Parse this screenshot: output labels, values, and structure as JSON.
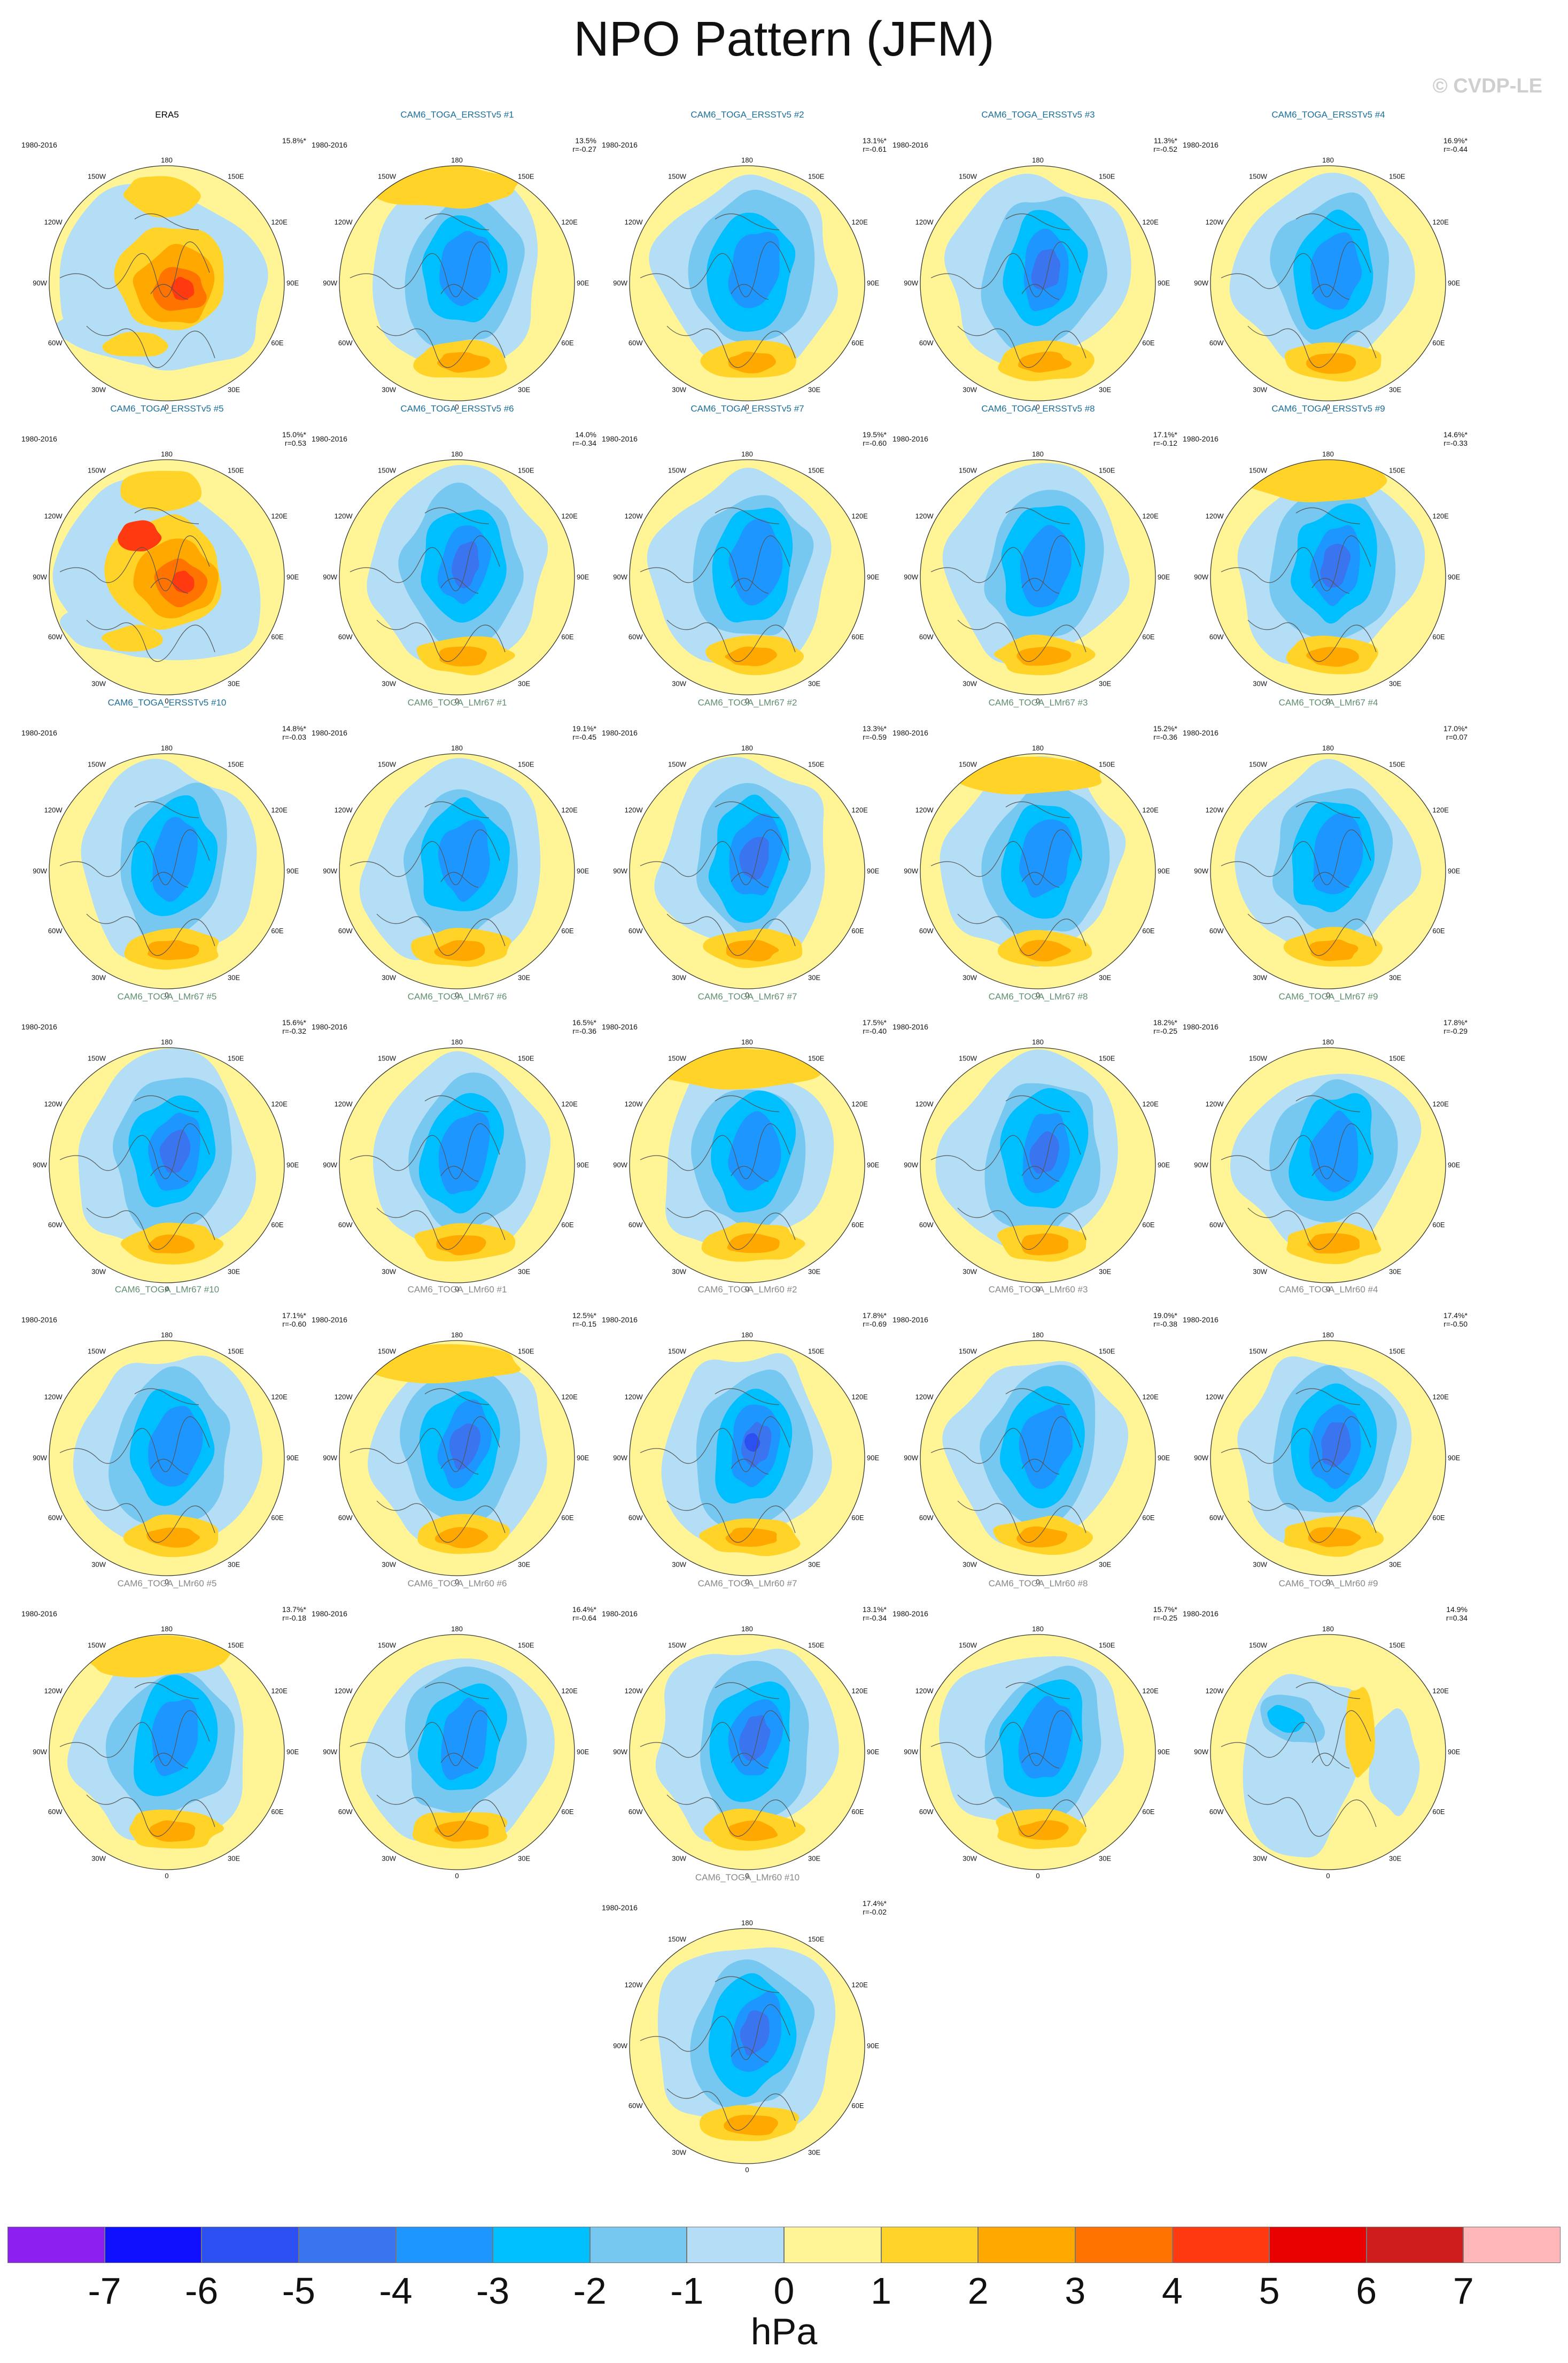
{
  "title": "NPO Pattern (JFM)",
  "copyright": "© CVDP-LE",
  "period": "1980-2016",
  "map_labels": {
    "top": "180",
    "bottom": "0",
    "left_upper": "120W",
    "left_mid": "90W",
    "left_lower": "60W",
    "right_upper": "120E",
    "right_mid": "90E",
    "right_lower": "60E",
    "top_left": "150W",
    "top_right": "150E",
    "bottom_left": "30W",
    "bottom_right": "30E"
  },
  "colors": {
    "title_era5": "#000000",
    "title_ersst": "#1b6f9a",
    "title_lmr67": "#5f8f6f",
    "title_lmr60": "#888888",
    "coast": "#555555"
  },
  "panels": [
    {
      "title": "ERA5",
      "pct": "15.8%*",
      "r": "",
      "group": "era5"
    },
    {
      "title": "CAM6_TOGA_ERSSTv5 #1",
      "pct": "13.5%",
      "r": "r=-0.27",
      "group": "ersst"
    },
    {
      "title": "CAM6_TOGA_ERSSTv5 #2",
      "pct": "13.1%*",
      "r": "r=-0.61",
      "group": "ersst"
    },
    {
      "title": "CAM6_TOGA_ERSSTv5 #3",
      "pct": "11.3%*",
      "r": "r=-0.52",
      "group": "ersst"
    },
    {
      "title": "CAM6_TOGA_ERSSTv5 #4",
      "pct": "16.9%*",
      "r": "r=-0.44",
      "group": "ersst"
    },
    {
      "title": "CAM6_TOGA_ERSSTv5 #5",
      "pct": "15.0%*",
      "r": "r=0.53",
      "group": "ersst"
    },
    {
      "title": "CAM6_TOGA_ERSSTv5 #6",
      "pct": "14.0%",
      "r": "r=-0.34",
      "group": "ersst"
    },
    {
      "title": "CAM6_TOGA_ERSSTv5 #7",
      "pct": "19.5%*",
      "r": "r=-0.60",
      "group": "ersst"
    },
    {
      "title": "CAM6_TOGA_ERSSTv5 #8",
      "pct": "17.1%*",
      "r": "r=-0.12",
      "group": "ersst"
    },
    {
      "title": "CAM6_TOGA_ERSSTv5 #9",
      "pct": "14.6%*",
      "r": "r=-0.33",
      "group": "ersst"
    },
    {
      "title": "CAM6_TOGA_ERSSTv5 #10",
      "pct": "14.8%*",
      "r": "r=-0.03",
      "group": "ersst"
    },
    {
      "title": "CAM6_TOGA_LMr67 #1",
      "pct": "19.1%*",
      "r": "r=-0.45",
      "group": "lmr67"
    },
    {
      "title": "CAM6_TOGA_LMr67 #2",
      "pct": "13.3%*",
      "r": "r=-0.59",
      "group": "lmr67"
    },
    {
      "title": "CAM6_TOGA_LMr67 #3",
      "pct": "15.2%*",
      "r": "r=-0.36",
      "group": "lmr67"
    },
    {
      "title": "CAM6_TOGA_LMr67 #4",
      "pct": "17.0%*",
      "r": "r=0.07",
      "group": "lmr67"
    },
    {
      "title": "CAM6_TOGA_LMr67 #5",
      "pct": "15.6%*",
      "r": "r=-0.32",
      "group": "lmr67"
    },
    {
      "title": "CAM6_TOGA_LMr67 #6",
      "pct": "16.5%*",
      "r": "r=-0.36",
      "group": "lmr67"
    },
    {
      "title": "CAM6_TOGA_LMr67 #7",
      "pct": "17.5%*",
      "r": "r=-0.40",
      "group": "lmr67"
    },
    {
      "title": "CAM6_TOGA_LMr67 #8",
      "pct": "18.2%*",
      "r": "r=-0.25",
      "group": "lmr67"
    },
    {
      "title": "CAM6_TOGA_LMr67 #9",
      "pct": "17.8%*",
      "r": "r=-0.29",
      "group": "lmr67"
    },
    {
      "title": "CAM6_TOGA_LMr67 #10",
      "pct": "17.1%*",
      "r": "r=-0.60",
      "group": "lmr67"
    },
    {
      "title": "CAM6_TOGA_LMr60 #1",
      "pct": "12.5%*",
      "r": "r=-0.15",
      "group": "lmr60"
    },
    {
      "title": "CAM6_TOGA_LMr60 #2",
      "pct": "17.8%*",
      "r": "r=-0.69",
      "group": "lmr60"
    },
    {
      "title": "CAM6_TOGA_LMr60 #3",
      "pct": "19.0%*",
      "r": "r=-0.38",
      "group": "lmr60"
    },
    {
      "title": "CAM6_TOGA_LMr60 #4",
      "pct": "17.4%*",
      "r": "r=-0.50",
      "group": "lmr60"
    },
    {
      "title": "CAM6_TOGA_LMr60 #5",
      "pct": "13.7%*",
      "r": "r=-0.18",
      "group": "lmr60"
    },
    {
      "title": "CAM6_TOGA_LMr60 #6",
      "pct": "16.4%*",
      "r": "r=-0.64",
      "group": "lmr60"
    },
    {
      "title": "CAM6_TOGA_LMr60 #7",
      "pct": "13.1%*",
      "r": "r=-0.34",
      "group": "lmr60"
    },
    {
      "title": "CAM6_TOGA_LMr60 #8",
      "pct": "15.7%*",
      "r": "r=-0.25",
      "group": "lmr60"
    },
    {
      "title": "CAM6_TOGA_LMr60 #9",
      "pct": "14.9%",
      "r": "r=0.34",
      "group": "lmr60"
    },
    {
      "title": "CAM6_TOGA_LMr60 #10",
      "pct": "17.4%*",
      "r": "r=-0.02",
      "group": "lmr60"
    }
  ],
  "colorbar": {
    "colors": [
      "#8b1ff0",
      "#1010ff",
      "#2b4ff0",
      "#3a74ee",
      "#1e96ff",
      "#00bfff",
      "#76c8f0",
      "#b3def5",
      "#fff596",
      "#ffd327",
      "#ffa800",
      "#ff7300",
      "#ff3a10",
      "#e80000",
      "#cf1c1c",
      "#ffb6b8"
    ],
    "ticks": [
      "-7",
      "-6",
      "-5",
      "-4",
      "-3",
      "-2",
      "-1",
      "0",
      "1",
      "2",
      "3",
      "4",
      "5",
      "6",
      "7"
    ],
    "units": "hPa"
  }
}
